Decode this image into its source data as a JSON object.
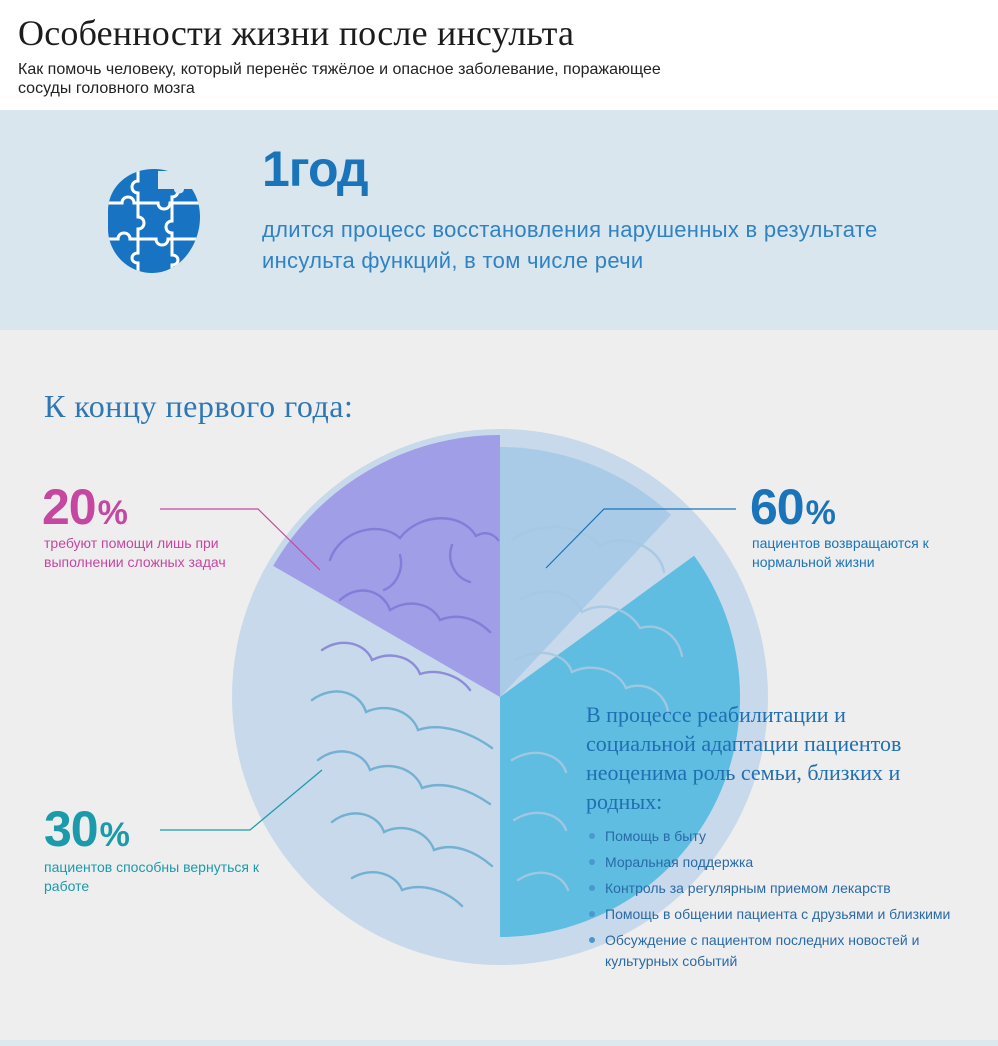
{
  "header": {
    "title": "Особенности жизни после инсульта",
    "subtitle": "Как помочь человеку, который перенёс тяжёлое и опасное заболевание, поражающее сосуды головного мозга"
  },
  "year_block": {
    "big": "1год",
    "text": "длится процесс восстановления нарушенных в результате инсульта функций, в том числе речи",
    "icon": "puzzle-head-icon"
  },
  "section": {
    "heading": "К концу первого года:"
  },
  "stats": {
    "s20": {
      "value": "20",
      "unit": "%",
      "desc": "требуют помощи лишь при выполнении сложных задач",
      "color": "#c5479f"
    },
    "s60": {
      "value": "60",
      "unit": "%",
      "desc": "пациентов возвращаются к нормальной жизни",
      "color": "#1a74b9"
    },
    "s30": {
      "value": "30",
      "unit": "%",
      "desc": "пациентов способны вернуться к работе",
      "color": "#1a9aaa"
    }
  },
  "rehab": {
    "heading": "В процессе реабилитации и социальной адаптации пациентов неоценима роль семьи, близких и родных:",
    "items": [
      "Помощь в быту",
      "Моральная поддержка",
      "Контроль за регулярным приемом лекарств",
      "Помощь в общении пациента с друзьями и близкими",
      "Обсуждение с пациентом последних новостей и культурных событий"
    ]
  },
  "colors": {
    "accent": "#1a74b9",
    "magenta": "#c5479f",
    "teal": "#1a9aaa",
    "band": "#d9e6ee",
    "background": "#eeeeef"
  },
  "chart_data": {
    "type": "pie",
    "categories": [
      "60%",
      "20%",
      "30%"
    ],
    "values": [
      60,
      20,
      30
    ],
    "ylabel": "%"
  }
}
